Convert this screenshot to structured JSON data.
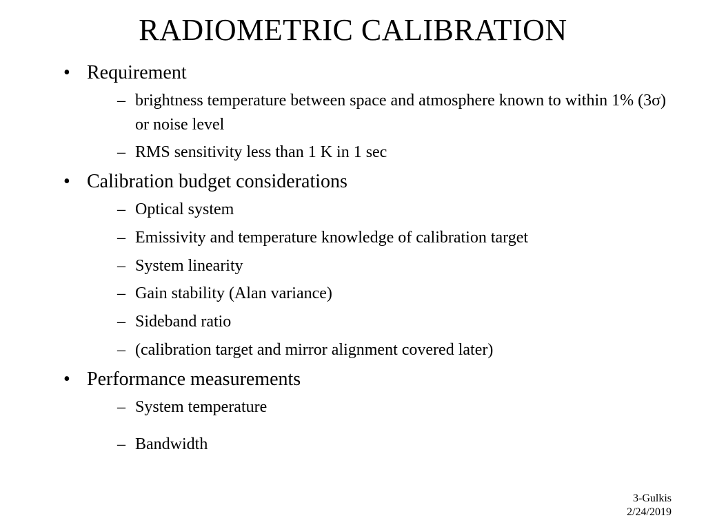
{
  "slide": {
    "title": "RADIOMETRIC CALIBRATION",
    "bullets": [
      {
        "label": "Requirement",
        "sub": [
          "brightness temperature between space and atmosphere known to within 1% (3σ) or noise level",
          "RMS sensitivity less than  1 K in 1 sec"
        ]
      },
      {
        "label": "Calibration budget considerations",
        "sub": [
          "Optical system",
          "Emissivity and temperature knowledge of calibration target",
          "System linearity",
          "Gain stability (Alan variance)",
          "Sideband ratio",
          "(calibration target and mirror alignment covered later)"
        ]
      },
      {
        "label": "Performance measurements",
        "sub": [
          "System temperature",
          "Bandwidth"
        ],
        "gap_before_last": true
      }
    ],
    "footer": {
      "line1": "3-Gulkis",
      "line2": "2/24/2019"
    },
    "colors": {
      "background": "#ffffff",
      "text": "#000000"
    },
    "typography": {
      "font_family": "Times New Roman",
      "title_fontsize_pt": 33,
      "bullet_fontsize_pt": 21,
      "sub_fontsize_pt": 18,
      "footer_fontsize_pt": 12
    }
  }
}
